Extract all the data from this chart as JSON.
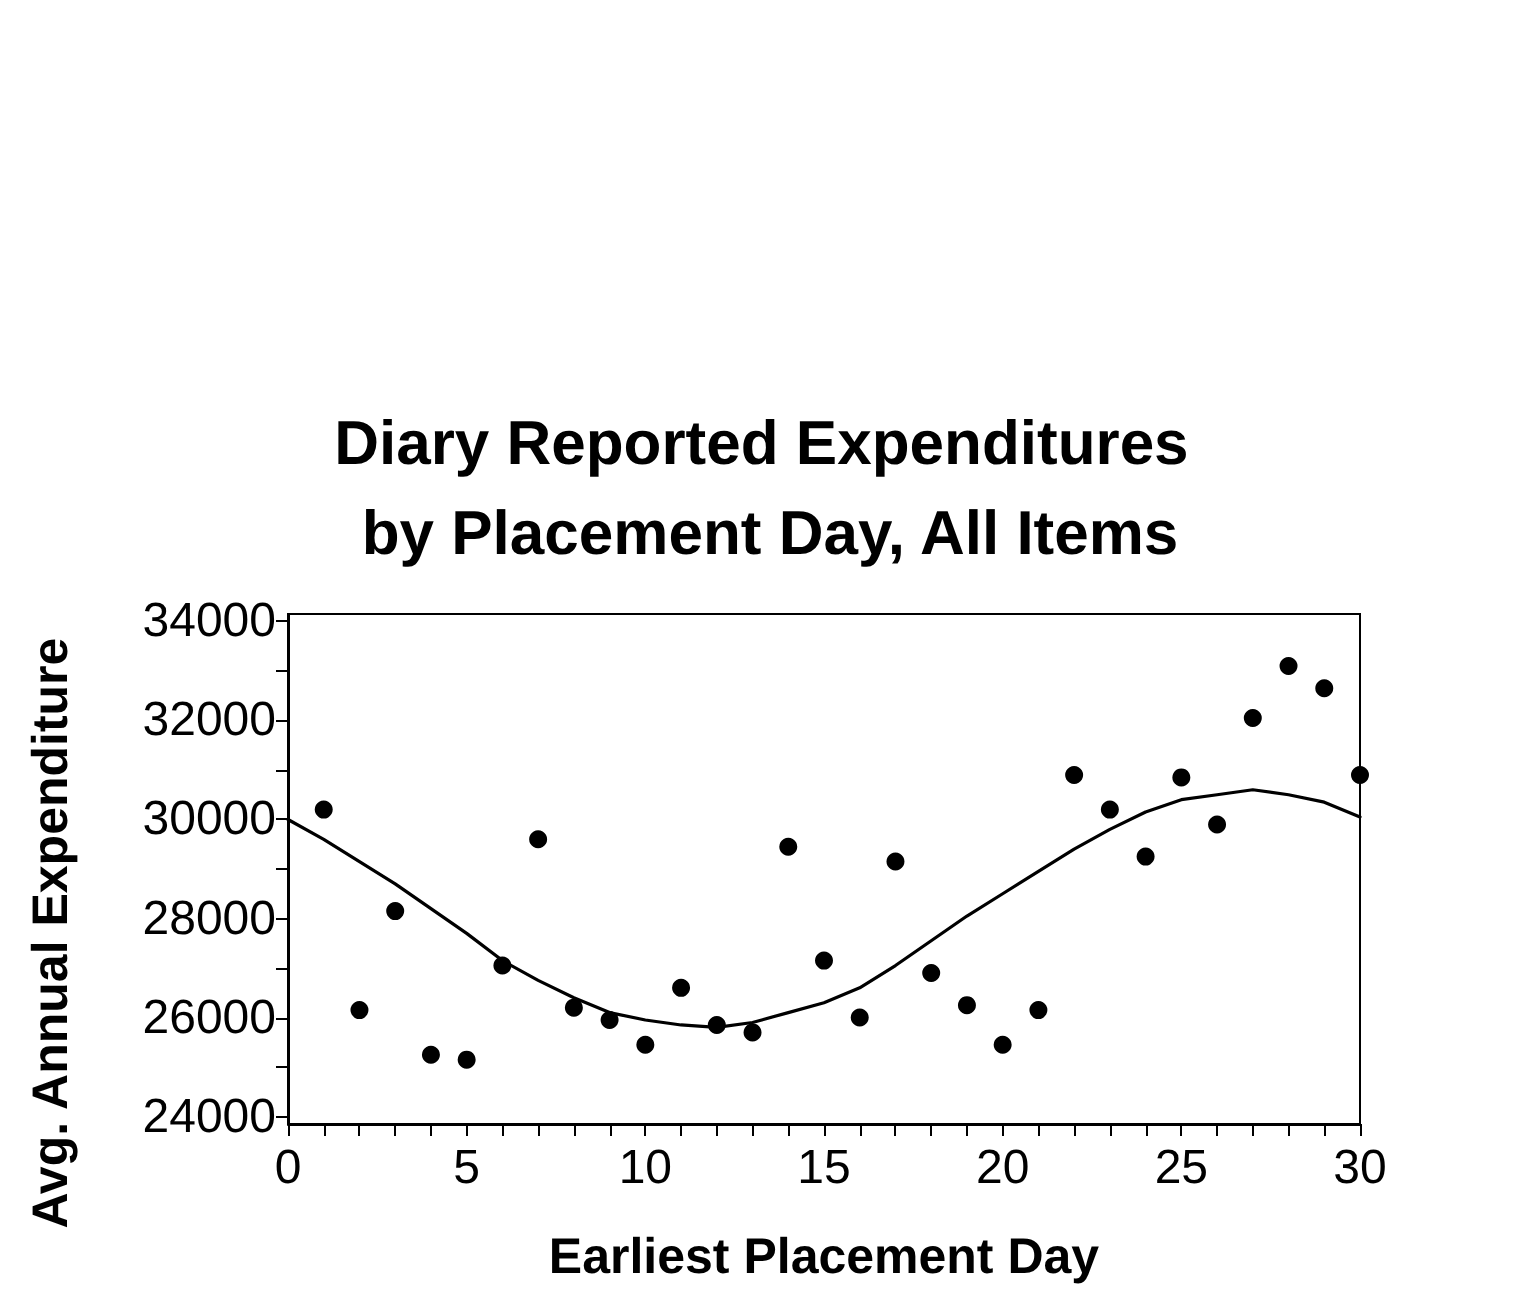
{
  "chart_data": {
    "type": "scatter",
    "title": "Diary Reported Expenditures by Placement Day, All Items",
    "xlabel": "Earliest Placement Day",
    "ylabel": "Avg. Annual Expenditure",
    "xlim": [
      0,
      30
    ],
    "ylim": [
      23850,
      34150
    ],
    "xticks": [
      0,
      {
        "value": 1,
        "label": null
      },
      {
        "value": 2,
        "label": null
      },
      {
        "value": 3,
        "label": null
      },
      {
        "value": 4,
        "label": null
      },
      5,
      {
        "value": 6,
        "label": null
      },
      {
        "value": 7,
        "label": null
      },
      {
        "value": 8,
        "label": null
      },
      {
        "value": 9,
        "label": null
      },
      10,
      {
        "value": 11,
        "label": null
      },
      {
        "value": 12,
        "label": null
      },
      {
        "value": 13,
        "label": null
      },
      {
        "value": 14,
        "label": null
      },
      15,
      {
        "value": 16,
        "label": null
      },
      {
        "value": 17,
        "label": null
      },
      {
        "value": 18,
        "label": null
      },
      {
        "value": 19,
        "label": null
      },
      20,
      {
        "value": 21,
        "label": null
      },
      {
        "value": 22,
        "label": null
      },
      {
        "value": 23,
        "label": null
      },
      {
        "value": 24,
        "label": null
      },
      25,
      {
        "value": 26,
        "label": null
      },
      {
        "value": 27,
        "label": null
      },
      {
        "value": 28,
        "label": null
      },
      {
        "value": 29,
        "label": null
      },
      30
    ],
    "yticks": [
      24000,
      {
        "value": 25000,
        "label": null
      },
      26000,
      {
        "value": 27000,
        "label": null
      },
      28000,
      {
        "value": 29000,
        "label": null
      },
      30000,
      {
        "value": 31000,
        "label": null
      },
      32000,
      {
        "value": 33000,
        "label": null
      },
      34000
    ],
    "grid": false,
    "marker": "circle",
    "series": [
      {
        "color": "#000000",
        "x": [
          1,
          2,
          3,
          4,
          5,
          6,
          7,
          8,
          9,
          10,
          11,
          12,
          13,
          14,
          15,
          16,
          17,
          18,
          19,
          20,
          21,
          22,
          23,
          24,
          25,
          26,
          27,
          28,
          29,
          30
        ],
        "values": [
          30200,
          26150,
          28150,
          25250,
          25150,
          27050,
          29600,
          26200,
          25950,
          25450,
          26600,
          25850,
          25700,
          29450,
          27150,
          26000,
          29150,
          26900,
          26250,
          25450,
          26150,
          30900,
          30200,
          29250,
          30850,
          29900,
          32050,
          33100,
          32650,
          30900
        ]
      },
      {
        "type": "line",
        "color": "#000000",
        "marker": "none",
        "line_style": "solid",
        "x": [
          0,
          1,
          2,
          3,
          4,
          5,
          6,
          7,
          8,
          9,
          10,
          11,
          12,
          13,
          14,
          15,
          16,
          17,
          18,
          19,
          20,
          21,
          22,
          23,
          24,
          25,
          26,
          27,
          28,
          29,
          30
        ],
        "values": [
          30000,
          29600,
          29150,
          28700,
          28200,
          27700,
          27150,
          26750,
          26400,
          26100,
          25950,
          25850,
          25800,
          25900,
          26100,
          26300,
          26600,
          27050,
          27550,
          28050,
          28500,
          28950,
          29400,
          29800,
          30150,
          30400,
          30500,
          30600,
          30500,
          30350,
          30050
        ]
      }
    ]
  }
}
